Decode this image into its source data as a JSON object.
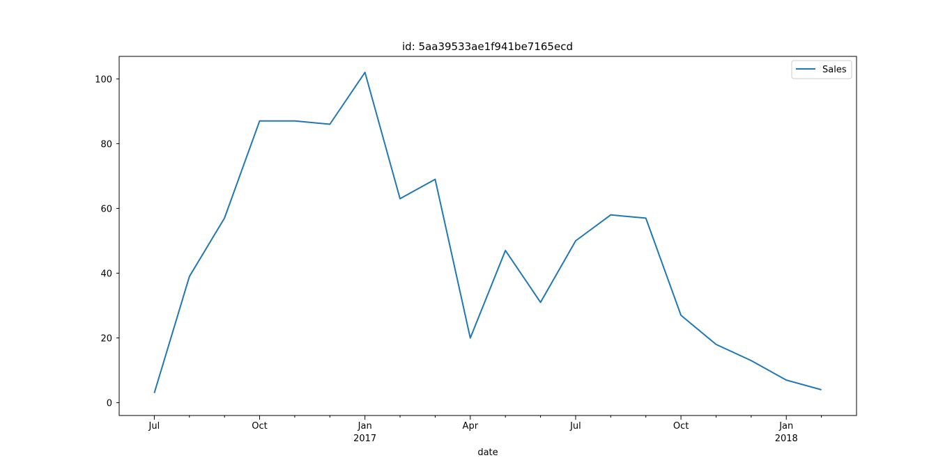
{
  "chart_data": {
    "type": "line",
    "title": "id: 5aa39533ae1f941be7165ecd",
    "xlabel": "date",
    "ylabel": "",
    "x": [
      "2016-07",
      "2016-08",
      "2016-09",
      "2016-10",
      "2016-11",
      "2016-12",
      "2017-01",
      "2017-02",
      "2017-03",
      "2017-04",
      "2017-05",
      "2017-06",
      "2017-07",
      "2017-08",
      "2017-09",
      "2017-10",
      "2017-11",
      "2017-12",
      "2018-01",
      "2018-02"
    ],
    "series": [
      {
        "name": "Sales",
        "color": "#1f77b4",
        "values": [
          3,
          39,
          57,
          87,
          87,
          86,
          102,
          63,
          69,
          20,
          47,
          31,
          50,
          58,
          57,
          27,
          18,
          13,
          7,
          4
        ]
      }
    ],
    "ylim": [
      -3.95,
      106.95
    ],
    "xlim": [
      "2016-06",
      "2018-03"
    ],
    "yticks": [
      0,
      20,
      40,
      60,
      80,
      100
    ],
    "xticks": [
      {
        "month": "2016-07",
        "label": "Jul",
        "sublabel": ""
      },
      {
        "month": "2016-10",
        "label": "Oct",
        "sublabel": ""
      },
      {
        "month": "2017-01",
        "label": "Jan",
        "sublabel": "2017"
      },
      {
        "month": "2017-04",
        "label": "Apr",
        "sublabel": ""
      },
      {
        "month": "2017-07",
        "label": "Jul",
        "sublabel": ""
      },
      {
        "month": "2017-10",
        "label": "Oct",
        "sublabel": ""
      },
      {
        "month": "2018-01",
        "label": "Jan",
        "sublabel": "2018"
      }
    ],
    "minor_xticks": [
      "2016-08",
      "2016-09",
      "2016-11",
      "2016-12",
      "2017-02",
      "2017-03",
      "2017-05",
      "2017-06",
      "2017-08",
      "2017-09",
      "2017-11",
      "2017-12",
      "2018-02"
    ],
    "grid": false,
    "legend": "top-right"
  }
}
